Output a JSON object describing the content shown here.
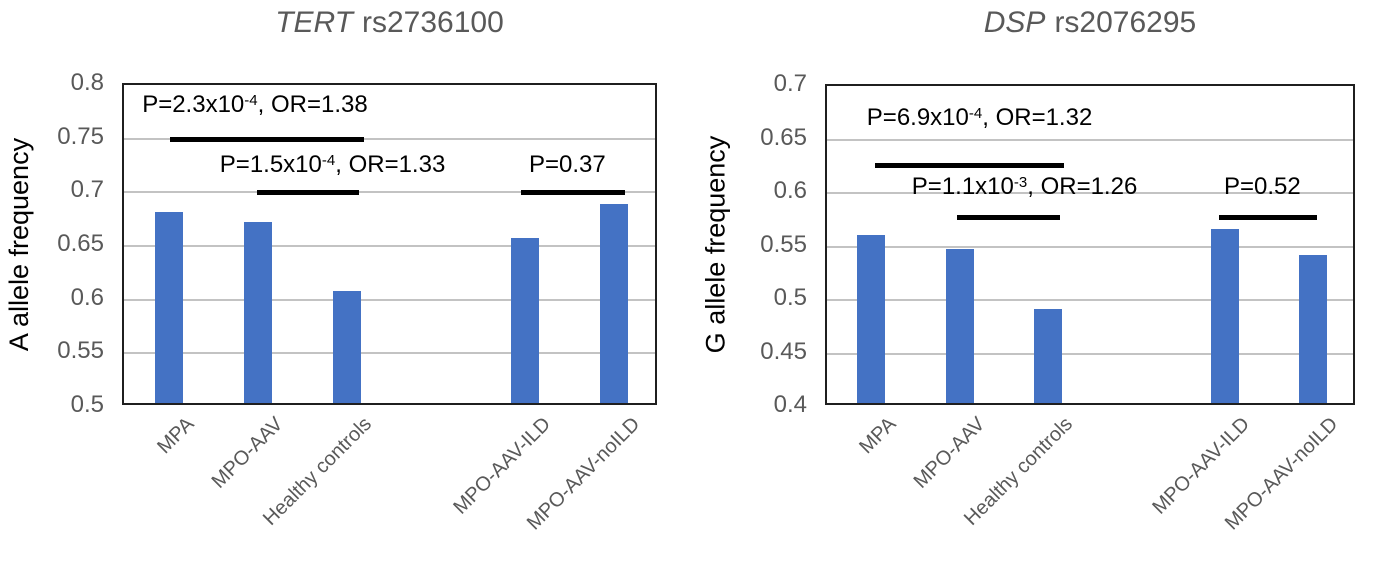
{
  "figure": {
    "bar_color": "#4472C4",
    "gridline_color": "#c3c3c3",
    "axis_color": "#1f1f1f",
    "label_gray": "#595959"
  },
  "chart_data": [
    {
      "type": "bar",
      "title": "TERT rs2736100",
      "title_gene": "TERT",
      "title_variant": "rs2736100",
      "ylabel": "A allele frequency",
      "xlabel": "",
      "ylim": [
        0.5,
        0.8
      ],
      "yticks": [
        0.8,
        0.75,
        0.7,
        0.65,
        0.6,
        0.55,
        0.5
      ],
      "grid": true,
      "legend": false,
      "n_slots": 6,
      "categories": [
        "MPA",
        "MPO-AAV",
        "Healthy controls",
        "MPO-AAV-ILD",
        "MPO-AAV-noILD"
      ],
      "slots": [
        0,
        1,
        2,
        4,
        5
      ],
      "values": [
        0.678,
        0.669,
        0.604,
        0.654,
        0.685
      ],
      "annotations": [
        {
          "text_base": "P=2.3x10",
          "text_sup": "-4",
          "text_rest": ", OR=1.38",
          "text_x": 0.034,
          "text_gap": 14,
          "line_value": 0.75,
          "line_x1": 0.086,
          "line_x2": 0.449
        },
        {
          "text_base": "P=1.5x10",
          "text_sup": "-4",
          "text_rest": ", OR=1.33",
          "text_x": 0.179,
          "text_gap": 8,
          "line_value": 0.7,
          "line_x1": 0.249,
          "line_x2": 0.439
        },
        {
          "text_base": "P=0.37",
          "text_sup": "",
          "text_rest": "",
          "text_x": 0.757,
          "text_gap": 8,
          "line_value": 0.7,
          "line_x1": 0.742,
          "line_x2": 0.937
        }
      ]
    },
    {
      "type": "bar",
      "title": "DSP rs2076295",
      "title_gene": "DSP",
      "title_variant": "rs2076295",
      "ylabel": "G allele frequency",
      "xlabel": "",
      "ylim": [
        0.4,
        0.7
      ],
      "yticks": [
        0.7,
        0.65,
        0.6,
        0.55,
        0.5,
        0.45,
        0.4
      ],
      "grid": true,
      "legend": false,
      "n_slots": 6,
      "categories": [
        "MPA",
        "MPO-AAV",
        "Healthy controls",
        "MPO-AAV-ILD",
        "MPO-AAV-noILD"
      ],
      "slots": [
        0,
        1,
        2,
        4,
        5
      ],
      "values": [
        0.557,
        0.544,
        0.488,
        0.563,
        0.538
      ],
      "annotations": [
        {
          "text_base": "P=6.9x10",
          "text_sup": "-4",
          "text_rest": ", OR=1.32",
          "text_x": 0.075,
          "text_gap": 28,
          "line_value": 0.626,
          "line_x1": 0.091,
          "line_x2": 0.447
        },
        {
          "text_base": "P=1.1x10",
          "text_sup": "-3",
          "text_rest": ", OR=1.26",
          "text_x": 0.16,
          "text_gap": 10,
          "line_value": 0.578,
          "line_x1": 0.245,
          "line_x2": 0.44
        },
        {
          "text_base": "P=0.52",
          "text_sup": "",
          "text_rest": "",
          "text_x": 0.749,
          "text_gap": 10,
          "line_value": 0.578,
          "line_x1": 0.74,
          "line_x2": 0.925
        }
      ]
    }
  ]
}
